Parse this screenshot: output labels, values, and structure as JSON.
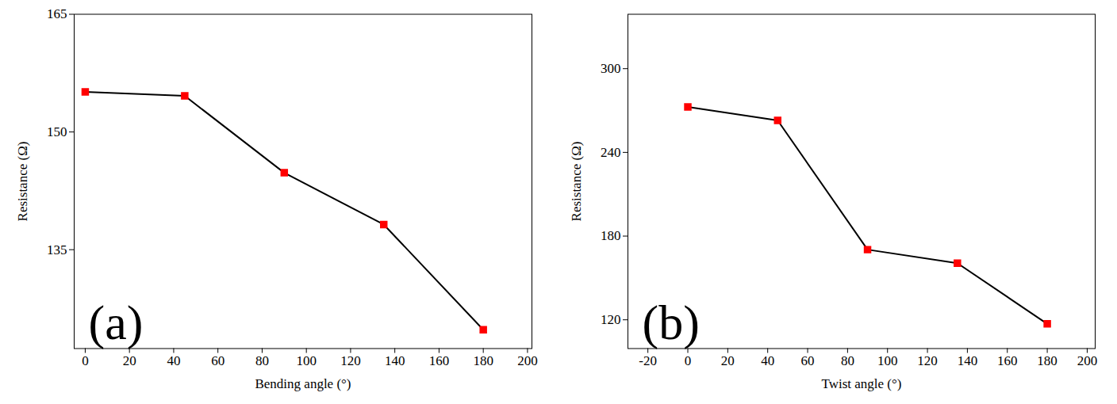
{
  "chart_data": [
    {
      "type": "line",
      "annotation": "(a)",
      "x_label": "Bending angle (°)",
      "y_label": "Resistance (Ω)",
      "x": [
        0,
        45,
        90,
        135,
        180
      ],
      "values": [
        155.1,
        154.6,
        144.8,
        138.2,
        124.8
      ],
      "color": "#ff0000",
      "marker": "square",
      "line_style": "solid",
      "xlim": [
        -5,
        202
      ],
      "xticks": [
        0,
        20,
        40,
        60,
        80,
        100,
        120,
        140,
        160,
        180,
        200
      ],
      "ylim": [
        122.4,
        165
      ],
      "yticks": [
        135,
        150,
        165
      ],
      "grid": false
    },
    {
      "type": "line",
      "annotation": "(b)",
      "x_label": "Twist angle (°)",
      "y_label": "Resistance (Ω)",
      "x": [
        0,
        45,
        90,
        135,
        180
      ],
      "values": [
        272.6,
        262.9,
        170.3,
        160.6,
        117.1
      ],
      "color": "#ff0000",
      "marker": "square",
      "line_style": "solid",
      "xlim": [
        -30,
        204
      ],
      "xticks": [
        -20,
        0,
        20,
        40,
        60,
        80,
        100,
        120,
        140,
        160,
        180,
        200
      ],
      "ylim": [
        99.4,
        339
      ],
      "yticks": [
        120,
        180,
        240,
        300
      ],
      "grid": false
    }
  ]
}
